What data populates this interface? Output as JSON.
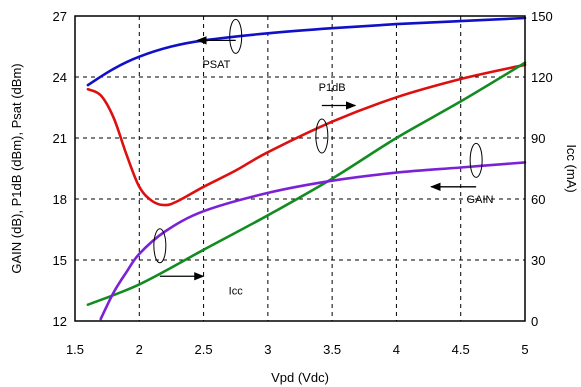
{
  "chart_data": {
    "type": "line",
    "title": "",
    "xlabel": "Vpd (Vdc)",
    "ylabel_left": "GAIN (dB), P1dB (dBm), Psat (dBm)",
    "ylabel_right": "Icc (mA)",
    "xlim": [
      1.5,
      5
    ],
    "ylim_left": [
      12,
      27
    ],
    "ylim_right": [
      0,
      150
    ],
    "x_ticks": [
      "1.5",
      "2",
      "2.5",
      "3",
      "3.5",
      "4",
      "4.5",
      "5"
    ],
    "y_left_ticks": [
      "12",
      "15",
      "18",
      "21",
      "24",
      "27"
    ],
    "y_right_ticks": [
      "0",
      "30",
      "60",
      "90",
      "120",
      "150"
    ],
    "grid": true,
    "series": [
      {
        "name": "PSAT",
        "axis": "left",
        "color": "#1010c8",
        "x": [
          1.6,
          1.8,
          2.0,
          2.25,
          2.5,
          3.0,
          3.5,
          4.0,
          4.5,
          5.0
        ],
        "y": [
          23.6,
          24.4,
          25.0,
          25.5,
          25.8,
          26.15,
          26.4,
          26.6,
          26.75,
          26.9
        ]
      },
      {
        "name": "P1dB",
        "axis": "left",
        "color": "#dd1010",
        "x": [
          1.6,
          1.7,
          1.8,
          1.9,
          2.0,
          2.1,
          2.2,
          2.3,
          2.5,
          2.75,
          3.0,
          3.5,
          4.0,
          4.5,
          5.0
        ],
        "y": [
          23.4,
          23.1,
          22.0,
          20.2,
          18.6,
          17.9,
          17.7,
          17.9,
          18.6,
          19.4,
          20.3,
          21.8,
          23.0,
          23.9,
          24.6
        ]
      },
      {
        "name": "Icc",
        "axis": "right",
        "color": "#128c20",
        "x": [
          1.6,
          2.0,
          2.5,
          3.0,
          3.5,
          4.0,
          4.5,
          5.0
        ],
        "y": [
          8,
          18,
          35,
          52,
          70,
          90,
          108,
          127
        ]
      },
      {
        "name": "GAIN",
        "axis": "left",
        "color": "#7b22d6",
        "x": [
          1.7,
          1.8,
          1.9,
          2.0,
          2.2,
          2.5,
          3.0,
          3.5,
          4.0,
          4.5,
          5.0
        ],
        "y": [
          12.1,
          13.4,
          14.4,
          15.3,
          16.4,
          17.4,
          18.3,
          18.9,
          19.3,
          19.55,
          19.8
        ]
      }
    ],
    "annotations": [
      {
        "text": "PSAT",
        "x": 2.6,
        "y": 24.45,
        "arrow_from": [
          2.75,
          25.8
        ],
        "arrow_to": [
          2.45,
          25.8
        ],
        "ellipse": [
          2.75,
          26.0
        ]
      },
      {
        "text": "P1dB",
        "x": 3.5,
        "y": 23.3,
        "arrow_from": [
          3.42,
          22.6
        ],
        "arrow_to": [
          3.68,
          22.6
        ],
        "ellipse": [
          3.42,
          21.1
        ]
      },
      {
        "text": "Icc",
        "x": 2.75,
        "y": 13.3,
        "arrow_from": [
          2.16,
          14.2
        ],
        "arrow_to": [
          2.5,
          14.2
        ],
        "ellipse": [
          2.16,
          15.7
        ]
      },
      {
        "text": "GAIN",
        "x": 4.65,
        "y": 17.8,
        "arrow_from": [
          4.62,
          18.6
        ],
        "arrow_to": [
          4.27,
          18.6
        ],
        "ellipse": [
          4.62,
          19.9
        ]
      }
    ]
  }
}
